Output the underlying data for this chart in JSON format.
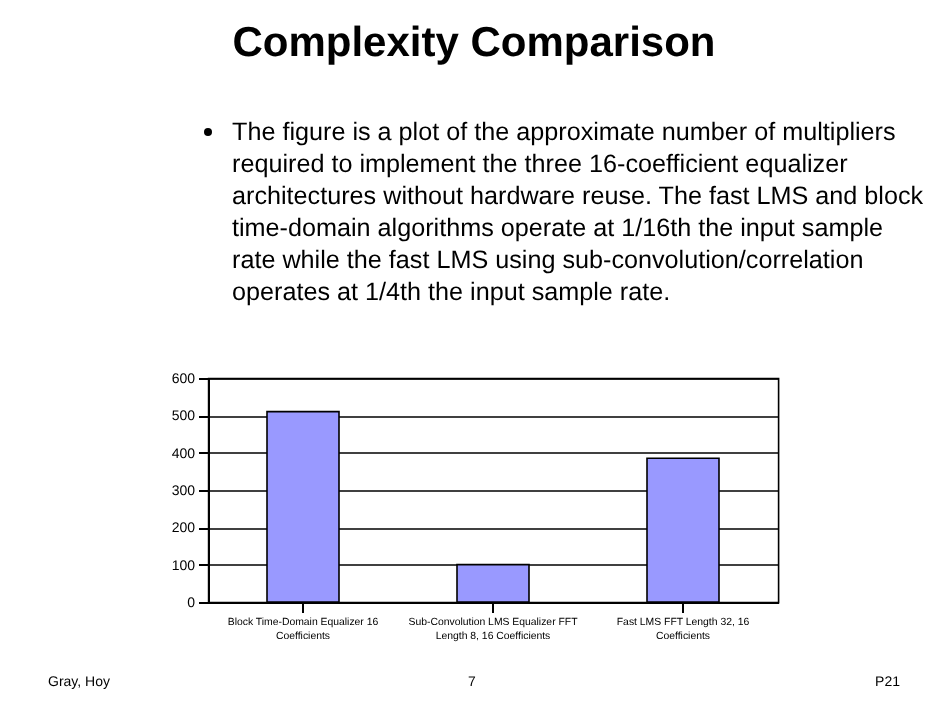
{
  "chart_data": {
    "type": "bar",
    "title": "Complexity Comparison",
    "subtitle": "The figure is a plot of the approximate number of  multipliers required to implement the three 16-coefficient equalizer architectures without hardware reuse. The fast LMS and block time-domain algorithms operate at 1/16th the input sample rate while the fast LMS using sub-convolution/correlation operates at 1/4th the input sample rate.",
    "categories": [
      "Block Time-Domain Equalizer 16 Coefficients",
      "Sub-Convolution LMS Equalizer FFT Length 8, 16 Coefficients",
      "Fast LMS FFT Length 32, 16 Coefficients"
    ],
    "values": [
      510,
      100,
      385
    ],
    "color": "#9999ff",
    "ylim": [
      0,
      600
    ],
    "yticks": [
      0,
      100,
      200,
      300,
      400,
      500,
      600
    ],
    "grid": "y",
    "annotations": [
      "Gray, Hoy",
      "7",
      "P21"
    ]
  }
}
